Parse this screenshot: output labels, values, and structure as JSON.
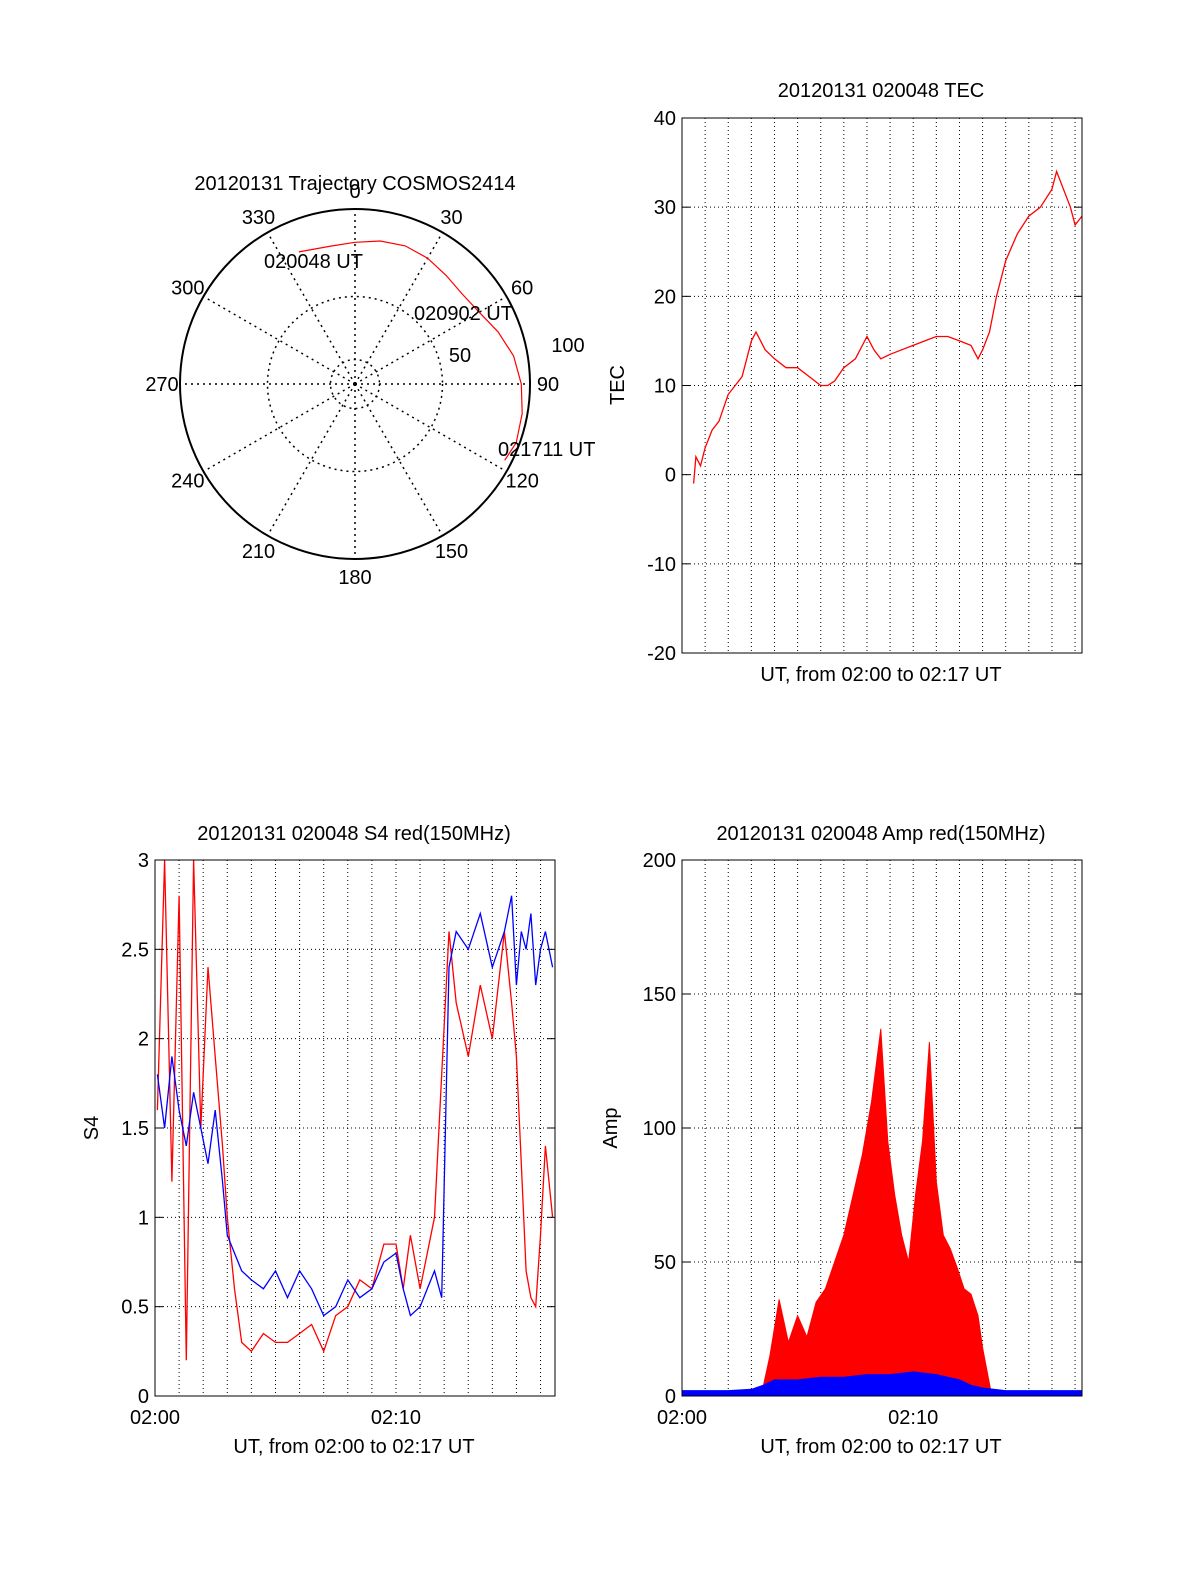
{
  "colors": {
    "red": "#ff0000",
    "blue": "#0000ff",
    "axis": "#000000"
  },
  "chart_data": [
    {
      "type": "polar",
      "title": "20120131 Trajectory COSMOS2414",
      "azimuth_labels": [
        "0",
        "30",
        "60",
        "90",
        "120",
        "150",
        "180",
        "210",
        "240",
        "270",
        "300",
        "330"
      ],
      "radial_labels": [
        "50",
        "100"
      ],
      "trajectory": {
        "azimuth_deg": [
          -23,
          -10,
          0,
          10,
          20,
          30,
          40,
          50,
          60,
          70,
          80,
          90,
          100,
          110,
          117
        ],
        "radius": [
          82,
          80,
          81,
          83,
          84,
          83,
          81,
          80,
          82,
          87,
          92,
          95,
          97,
          98,
          96
        ]
      },
      "annotations": [
        "020048 UT",
        "020902 UT",
        "021711 UT"
      ]
    },
    {
      "type": "line",
      "title": "20120131 020048 TEC",
      "xlabel": "UT, from 02:00 to 02:17 UT",
      "ylabel": "TEC",
      "xlim": [
        0,
        17.3
      ],
      "ylim": [
        -20,
        40
      ],
      "yticks": [
        "-20",
        "-10",
        "0",
        "10",
        "20",
        "30",
        "40"
      ],
      "grid": true,
      "series": [
        {
          "color": "red",
          "x": [
            0.5,
            0.6,
            0.8,
            1.0,
            1.3,
            1.6,
            2.0,
            2.3,
            2.6,
            2.9,
            3.0,
            3.2,
            3.6,
            4.0,
            4.5,
            5.0,
            5.5,
            6.0,
            6.3,
            6.6,
            7.0,
            7.5,
            8.0,
            8.3,
            8.6,
            9.0,
            9.5,
            10.0,
            10.5,
            11.0,
            11.5,
            12.0,
            12.5,
            12.8,
            13.0,
            13.3,
            13.6,
            14.0,
            14.5,
            15.0,
            15.5,
            16.0,
            16.2,
            16.5,
            16.8,
            17.0,
            17.3
          ],
          "y": [
            -1,
            2,
            1,
            3,
            5,
            6,
            9,
            10,
            11,
            14,
            15,
            16,
            14,
            13,
            12,
            12,
            11,
            10,
            10,
            10.5,
            12,
            13,
            15.5,
            14,
            13,
            13.5,
            14,
            14.5,
            15,
            15.5,
            15.5,
            15,
            14.5,
            13,
            14,
            16,
            20,
            24,
            27,
            29,
            30,
            32,
            34,
            32,
            30,
            28,
            29
          ]
        }
      ]
    },
    {
      "type": "line",
      "title": "20120131 020048 S4 red(150MHz)",
      "xlabel": "UT, from 02:00 to 02:17 UT",
      "ylabel": "S4",
      "xlim": [
        0,
        16.6
      ],
      "ylim": [
        0,
        3
      ],
      "xticks": [
        "02:00",
        "02:10"
      ],
      "yticks": [
        "0",
        "0.5",
        "1",
        "1.5",
        "2",
        "2.5",
        "3"
      ],
      "grid": true,
      "series": [
        {
          "color": "red",
          "x": [
            0.1,
            0.4,
            0.7,
            1.0,
            1.3,
            1.6,
            1.9,
            2.2,
            2.5,
            2.8,
            3.0,
            3.3,
            3.6,
            4.0,
            4.5,
            5.0,
            5.5,
            6.0,
            6.5,
            7.0,
            7.5,
            8.0,
            8.5,
            9.0,
            9.5,
            10.0,
            10.3,
            10.6,
            11.0,
            11.3,
            11.6,
            11.9,
            12.2,
            12.5,
            13.0,
            13.5,
            14.0,
            14.5,
            14.8,
            15.0,
            15.2,
            15.4,
            15.6,
            15.8,
            16.0,
            16.2,
            16.5
          ],
          "y": [
            1.6,
            3.0,
            1.2,
            2.8,
            0.2,
            3.0,
            1.5,
            2.4,
            1.9,
            1.4,
            1.0,
            0.6,
            0.3,
            0.25,
            0.35,
            0.3,
            0.3,
            0.35,
            0.4,
            0.25,
            0.45,
            0.5,
            0.65,
            0.6,
            0.85,
            0.85,
            0.6,
            0.9,
            0.6,
            0.8,
            1.0,
            1.8,
            2.6,
            2.2,
            1.9,
            2.3,
            2.0,
            2.6,
            2.2,
            1.9,
            1.3,
            0.7,
            0.55,
            0.5,
            0.9,
            1.4,
            1.0
          ]
        },
        {
          "color": "blue",
          "x": [
            0.1,
            0.4,
            0.7,
            1.0,
            1.3,
            1.6,
            1.9,
            2.2,
            2.5,
            2.8,
            3.0,
            3.3,
            3.6,
            4.0,
            4.5,
            5.0,
            5.5,
            6.0,
            6.5,
            7.0,
            7.5,
            8.0,
            8.5,
            9.0,
            9.5,
            10.0,
            10.3,
            10.6,
            11.0,
            11.3,
            11.6,
            11.9,
            12.2,
            12.5,
            13.0,
            13.5,
            14.0,
            14.5,
            14.8,
            15.0,
            15.2,
            15.4,
            15.6,
            15.8,
            16.0,
            16.2,
            16.5
          ],
          "y": [
            1.8,
            1.5,
            1.9,
            1.6,
            1.4,
            1.7,
            1.5,
            1.3,
            1.6,
            1.2,
            0.9,
            0.8,
            0.7,
            0.65,
            0.6,
            0.7,
            0.55,
            0.7,
            0.6,
            0.45,
            0.5,
            0.65,
            0.55,
            0.6,
            0.75,
            0.8,
            0.6,
            0.45,
            0.5,
            0.6,
            0.7,
            0.55,
            2.4,
            2.6,
            2.5,
            2.7,
            2.4,
            2.6,
            2.8,
            2.3,
            2.6,
            2.5,
            2.7,
            2.3,
            2.5,
            2.6,
            2.4
          ]
        }
      ]
    },
    {
      "type": "line",
      "title": "20120131 020048 Amp red(150MHz)",
      "xlabel": "UT, from 02:00 to 02:17 UT",
      "ylabel": "Amp",
      "xlim": [
        0,
        17.3
      ],
      "ylim": [
        0,
        200
      ],
      "xticks": [
        "02:00",
        "02:10"
      ],
      "yticks": [
        "0",
        "50",
        "100",
        "150",
        "200"
      ],
      "grid": true,
      "series": [
        {
          "color": "red",
          "x": [
            0.0,
            3.0,
            3.5,
            3.8,
            4.2,
            4.6,
            5.0,
            5.4,
            5.8,
            6.2,
            6.6,
            7.0,
            7.4,
            7.8,
            8.2,
            8.6,
            8.9,
            9.2,
            9.5,
            9.8,
            10.1,
            10.4,
            10.7,
            11.0,
            11.3,
            11.6,
            11.9,
            12.2,
            12.5,
            12.8,
            13.0,
            13.4,
            14.0,
            15.0,
            16.0,
            17.3
          ],
          "y": [
            0,
            0,
            3,
            15,
            36,
            20,
            30,
            22,
            35,
            40,
            50,
            60,
            75,
            90,
            110,
            137,
            95,
            75,
            60,
            50,
            75,
            95,
            132,
            80,
            60,
            55,
            48,
            40,
            38,
            30,
            18,
            0,
            0,
            0,
            2,
            0
          ]
        },
        {
          "color": "blue",
          "x": [
            0.0,
            1.0,
            2.0,
            3.0,
            3.5,
            4.0,
            5.0,
            6.0,
            7.0,
            8.0,
            9.0,
            10.0,
            11.0,
            12.0,
            12.5,
            13.0,
            14.0,
            15.0,
            16.0,
            17.3
          ],
          "y": [
            2,
            2,
            2,
            2.5,
            4,
            6,
            6,
            7,
            7,
            8,
            8,
            9,
            8,
            6,
            4,
            3,
            2,
            2,
            2,
            2
          ]
        }
      ]
    }
  ]
}
